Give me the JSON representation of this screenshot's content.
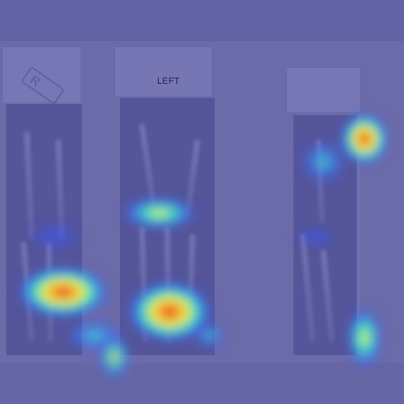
{
  "image": {
    "description_label": "LEFT",
    "colors": {
      "background": "#6b6ba9",
      "film_frame": "#7474b4",
      "heat_low": "#3b4cf0",
      "heat_mid": "#35e0c0",
      "heat_high": "#f8e640",
      "heat_peak": "#e0402a"
    }
  }
}
